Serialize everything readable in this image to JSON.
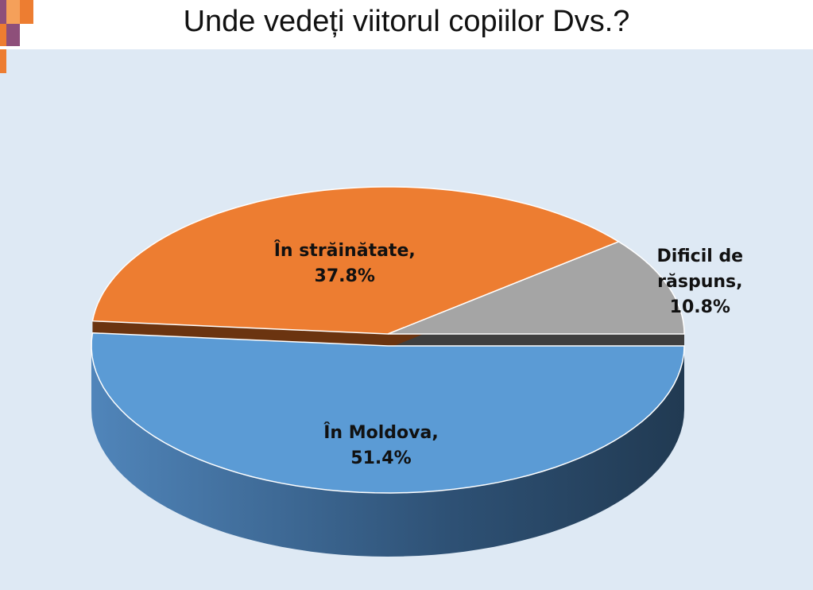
{
  "chart_data": {
    "type": "pie",
    "title": "Unde vedeți viitorul copiilor Dvs.?",
    "categories": [
      "Dificil de răspuns,",
      "În străinătate,",
      "În Moldova,"
    ],
    "values": [
      10.8,
      37.8,
      51.4
    ],
    "value_labels": [
      "10.8%",
      "37.8%",
      "51.4%"
    ],
    "colors": [
      "#a5a5a5",
      "#ed7d31",
      "#5b9bd5"
    ]
  }
}
